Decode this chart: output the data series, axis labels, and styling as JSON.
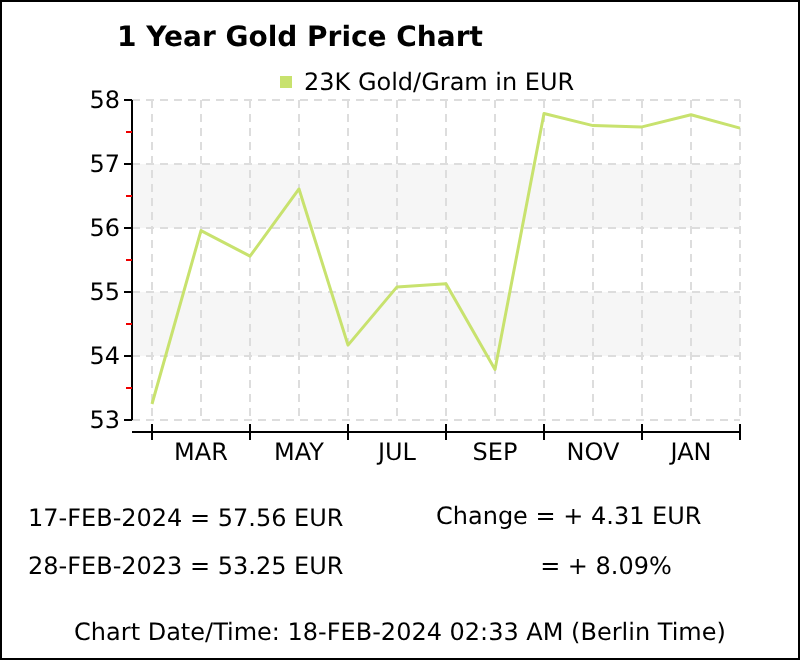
{
  "chart_data": {
    "type": "line",
    "title": "1 Year Gold Price Chart",
    "categories": [
      null,
      "MAR",
      null,
      "MAY",
      null,
      "JUL",
      null,
      "SEP",
      null,
      "NOV",
      null,
      "JAN",
      null
    ],
    "series": [
      {
        "name": "23K Gold/Gram  in EUR",
        "color": "#c8e26e",
        "values": [
          53.25,
          55.96,
          55.56,
          56.61,
          54.17,
          55.08,
          55.13,
          53.79,
          57.79,
          57.6,
          57.58,
          57.77,
          57.56
        ]
      }
    ],
    "ylim": [
      53,
      58
    ],
    "yticks": [
      53,
      {
        "value": 53.5,
        "label": null
      },
      54,
      {
        "value": 54.5,
        "label": null
      },
      55,
      {
        "value": 55.5,
        "label": null
      },
      56,
      {
        "value": 56.5,
        "label": null
      },
      57,
      {
        "value": 57.5,
        "label": null
      },
      58
    ],
    "bands": [
      {
        "axis": "y",
        "from": 54,
        "to": 55,
        "color": "#f6f6f6"
      },
      {
        "axis": "y",
        "from": 56,
        "to": 57,
        "color": "#f6f6f6"
      }
    ],
    "grid": true,
    "legend": "top",
    "marker": "none",
    "line_style": "solid",
    "annotations": [
      "17-FEB-2024 = 57.56 EUR",
      "28-FEB-2023 = 53.25 EUR",
      "Change   = + 4.31 EUR",
      "= + 8.09%",
      "Chart Date/Time: 18-FEB-2024 02:33 AM (Berlin Time)"
    ]
  }
}
